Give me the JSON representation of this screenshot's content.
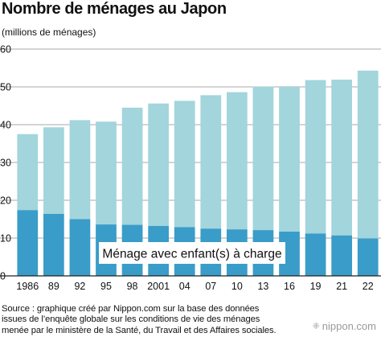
{
  "chart_data": {
    "type": "bar",
    "stacked": true,
    "title": "Nombre de ménages au Japon",
    "ylabel": "(millions de ménages)",
    "categories": [
      "1986",
      "89",
      "92",
      "95",
      "98",
      "2001",
      "04",
      "07",
      "10",
      "13",
      "16",
      "19",
      "21",
      "22"
    ],
    "series": [
      {
        "name": "Ménage avec enfant(s) à charge",
        "values": [
          17.4,
          16.4,
          15.0,
          13.6,
          13.5,
          13.2,
          12.9,
          12.5,
          12.3,
          12.1,
          11.7,
          11.2,
          10.7,
          9.9
        ]
      },
      {
        "name": "",
        "values": [
          20.1,
          22.9,
          26.2,
          27.2,
          31.0,
          32.4,
          33.4,
          35.3,
          36.3,
          38.0,
          38.3,
          40.6,
          41.2,
          44.4
        ]
      }
    ],
    "totals": [
      37.5,
      39.3,
      41.2,
      40.8,
      44.5,
      45.6,
      46.3,
      47.8,
      48.6,
      50.1,
      50.0,
      51.8,
      51.9,
      54.3
    ],
    "ylim": [
      0,
      60
    ],
    "yticks": [
      "0",
      "10",
      "20",
      "30",
      "40",
      "50",
      "60"
    ],
    "grid": true,
    "colors": {
      "lower": "#3a9cc8",
      "upper": "#a2d5dc",
      "grid": "#aaaaaa"
    },
    "annotation": "Ménage avec enfant(s) à charge",
    "source": [
      "Source : graphique créé par Nippon.com sur la base des données",
      "issues de l’enquête globale sur les conditions de vie des ménages",
      "menée par le ministère de la Santé, du Travail et des Affaires sociales."
    ]
  },
  "logo": {
    "text": "nippon.com"
  }
}
